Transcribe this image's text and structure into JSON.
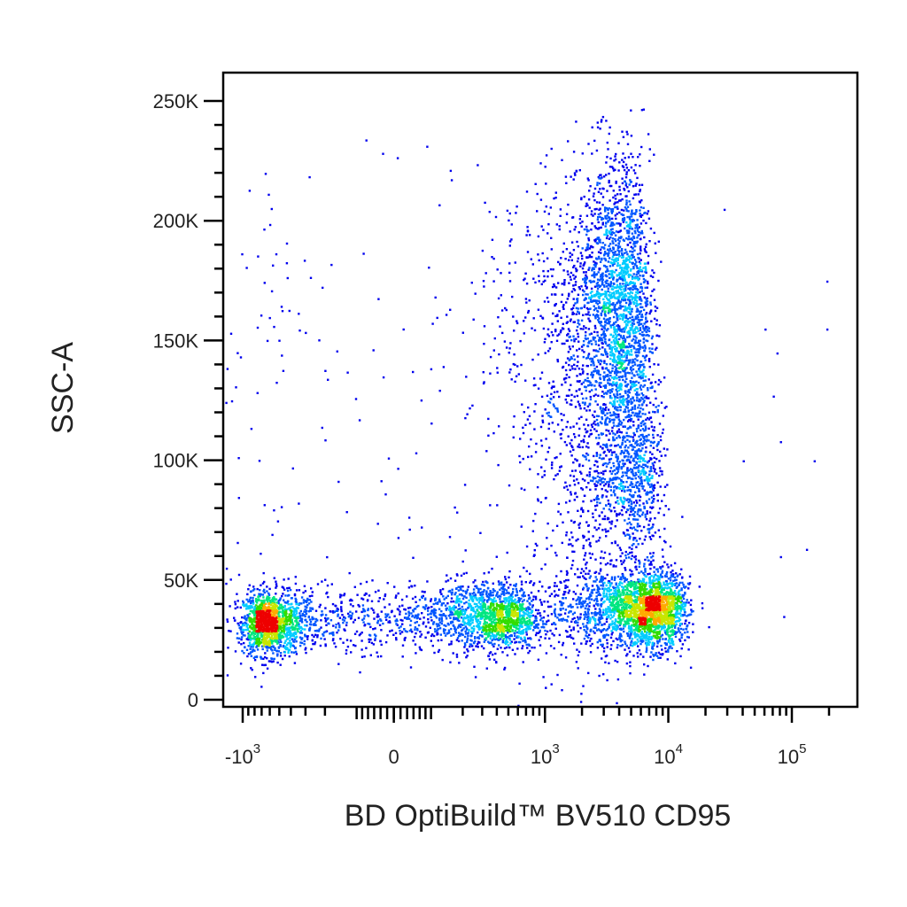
{
  "chart_data": {
    "type": "scatter",
    "title": "",
    "xlabel": "BD OptiBuild™ BV510 CD95",
    "ylabel": "SSC-A",
    "xscale": "biexponential (log with linear region around 0)",
    "yscale": "linear",
    "xlim": [
      -1200,
      200000
    ],
    "ylim": [
      -5000,
      262144
    ],
    "grid": false,
    "legend": "none",
    "colormap": "density (blue-cyan-green-yellow-red)",
    "x_ticks": [
      {
        "value": -1000,
        "base": "-10",
        "exp": "3"
      },
      {
        "value": 0,
        "base": "0",
        "exp": ""
      },
      {
        "value": 1000,
        "base": "10",
        "exp": "3"
      },
      {
        "value": 10000,
        "base": "10",
        "exp": "4"
      },
      {
        "value": 100000,
        "base": "10",
        "exp": "5"
      }
    ],
    "y_ticks": [
      {
        "value": 0,
        "label": "0"
      },
      {
        "value": 50000,
        "label": "50K"
      },
      {
        "value": 100000,
        "label": "100K"
      },
      {
        "value": 150000,
        "label": "150K"
      },
      {
        "value": 200000,
        "label": "200K"
      },
      {
        "value": 250000,
        "label": "250K"
      }
    ],
    "populations": [
      {
        "name": "",
        "count": 1400,
        "x_center": -600,
        "x_spread": 200,
        "y_center": 32000,
        "y_spread": 6500
      },
      {
        "name": "",
        "count": 1700,
        "x_center": 300,
        "x_spread": 250,
        "y_center": 35000,
        "y_spread": 7000
      },
      {
        "name": "",
        "count": 2600,
        "x_center": 6000,
        "x_spread": 3500,
        "y_center": 38000,
        "y_spread": 8000
      },
      {
        "name": "",
        "count": 2600,
        "x_center": 3500,
        "x_spread": 1700,
        "y_center": 165000,
        "y_spread": 30000
      },
      {
        "name": "",
        "count": 900,
        "x_center": 5000,
        "x_spread": 1800,
        "y_center": 95000,
        "y_spread": 20000
      },
      {
        "name": "",
        "count": 500,
        "x_center": 1500,
        "x_spread": 1200,
        "y_center": 90000,
        "y_spread": 45000
      }
    ],
    "outliers": [
      {
        "x": 60000,
        "y": 155000
      },
      {
        "x": 75000,
        "y": 145000
      },
      {
        "x": 70000,
        "y": 127000
      },
      {
        "x": 150000,
        "y": 100000
      },
      {
        "x": 190000,
        "y": 175000
      },
      {
        "x": 190000,
        "y": 155000
      },
      {
        "x": 80000,
        "y": 60000
      },
      {
        "x": 85000,
        "y": 35000
      },
      {
        "x": 130000,
        "y": 63000
      },
      {
        "x": 40000,
        "y": 100000
      },
      {
        "x": 80000,
        "y": 108000
      },
      {
        "x": 28000,
        "y": 205000
      }
    ]
  }
}
